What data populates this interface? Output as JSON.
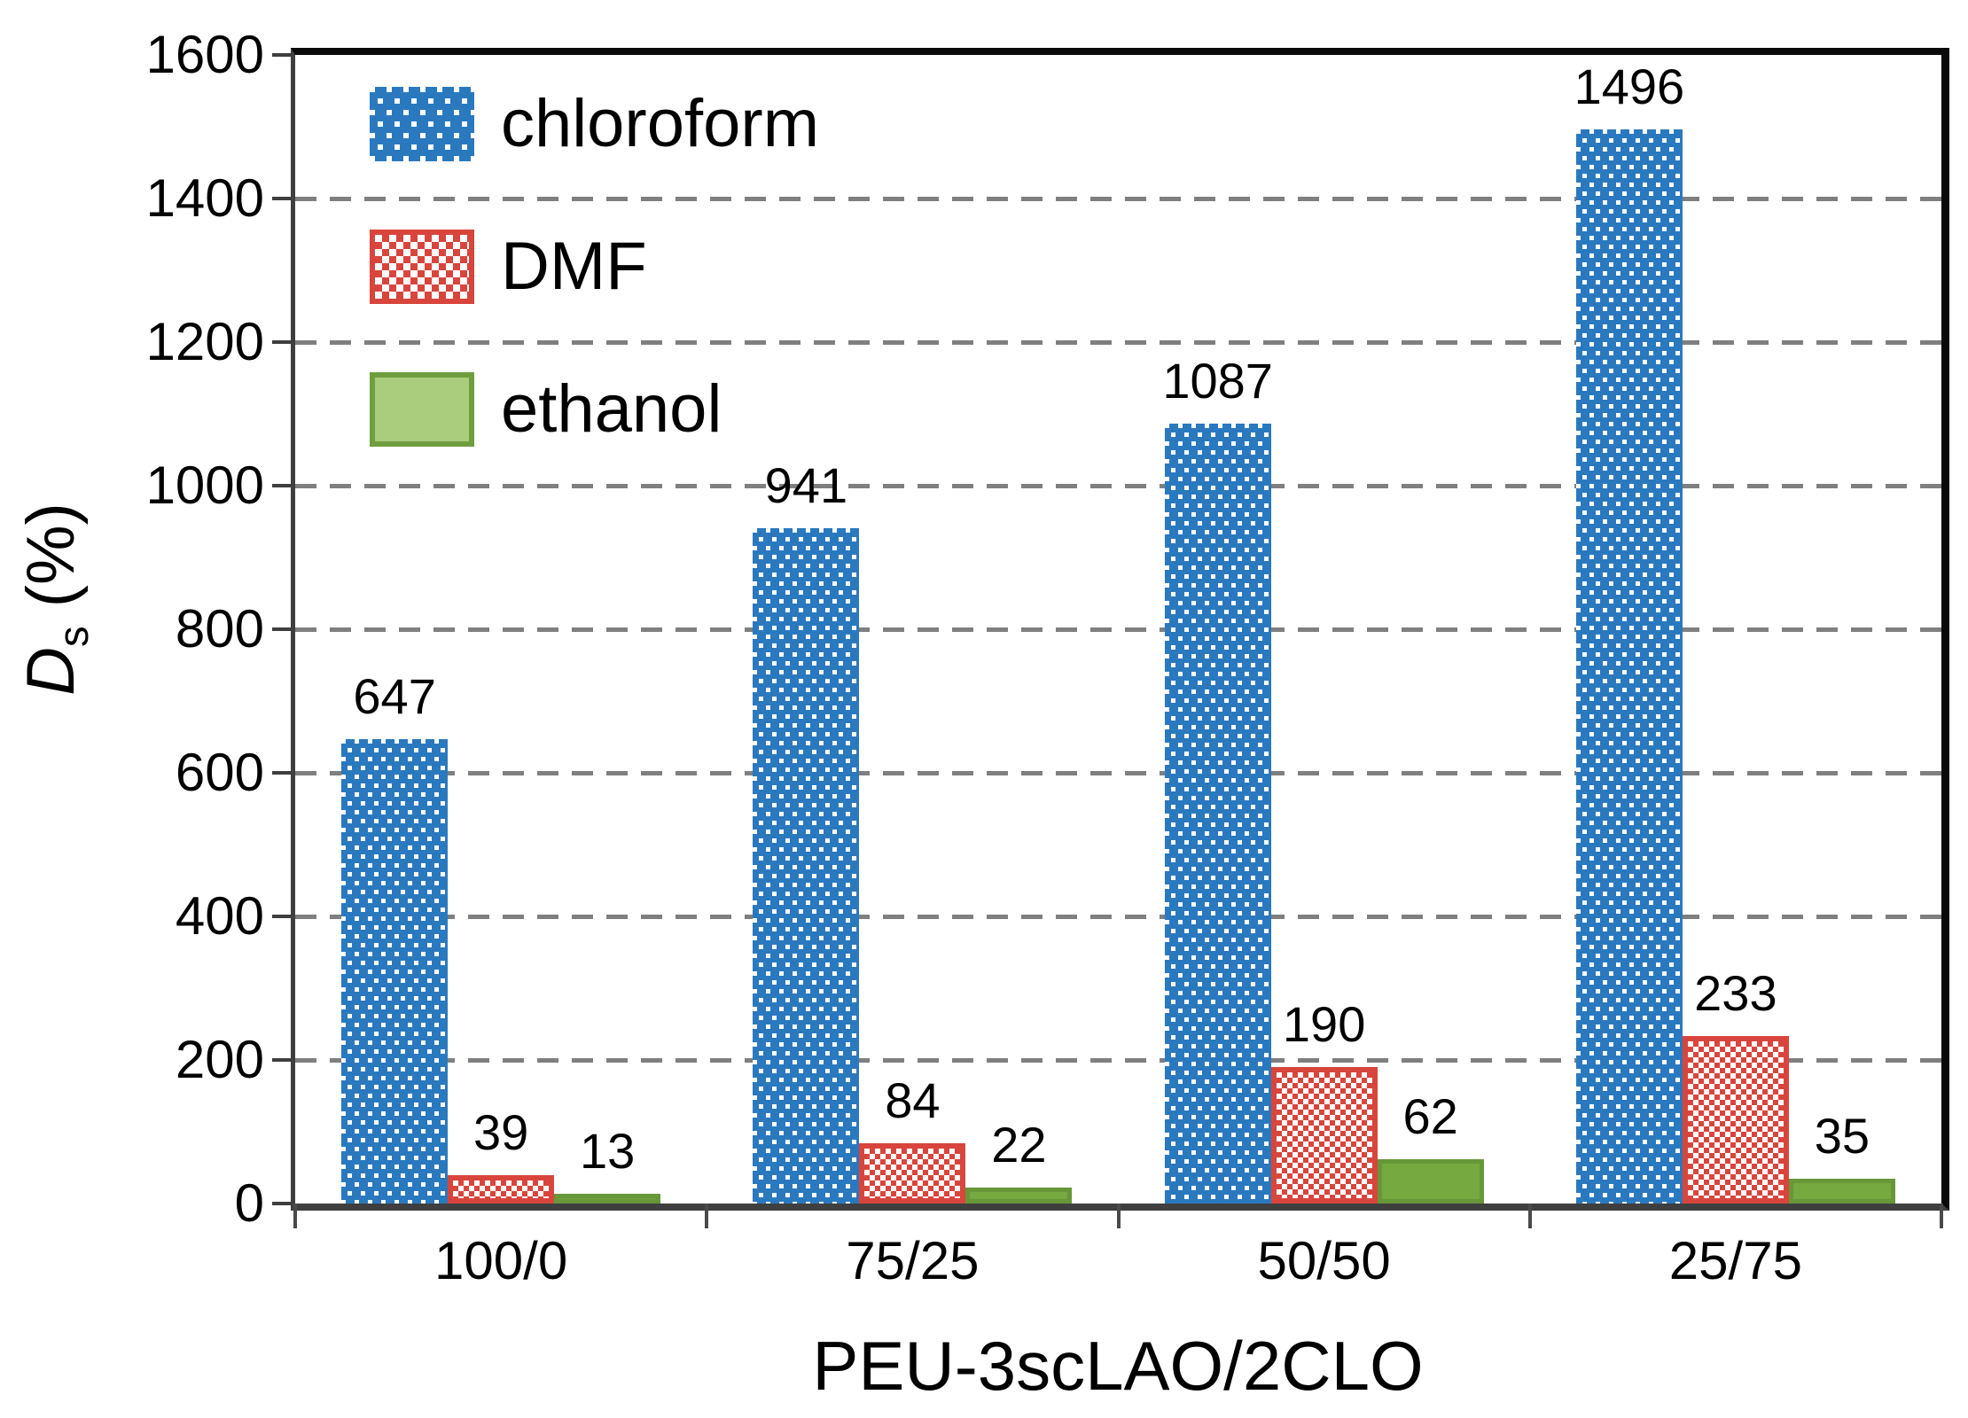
{
  "chart_data": {
    "type": "bar",
    "title": "",
    "categories": [
      "100/0",
      "75/25",
      "50/50",
      "25/75"
    ],
    "series": [
      {
        "name": "chloroform",
        "values": [
          647,
          941,
          1087,
          1496
        ],
        "pattern": "dots-on-blue",
        "color": "#2A79BF"
      },
      {
        "name": "DMF",
        "values": [
          39,
          84,
          190,
          233
        ],
        "pattern": "red-checkerboard",
        "color": "#D8453C"
      },
      {
        "name": "ethanol",
        "values": [
          13,
          22,
          62,
          35
        ],
        "pattern": "solid-green",
        "color": "#76A940"
      }
    ],
    "xlabel": "PEU-3scLAO/2CLO",
    "ylabel": {
      "symbol": "D",
      "subscript": "s",
      "unit": " (%)"
    },
    "ylim": [
      0,
      1600
    ],
    "ytick_interval": 200,
    "yticks": [
      "0",
      "200",
      "400",
      "600",
      "800",
      "1000",
      "1200",
      "1400",
      "1600"
    ],
    "grid": {
      "style": "dashed",
      "orientation": "horizontal",
      "color": "#7f7f7f"
    },
    "legend": {
      "position": "top-left-inside",
      "entries": [
        "chloroform",
        "DMF",
        "ethanol"
      ]
    },
    "colors": {
      "chloroform_fill": "#2A79BF",
      "dmf_fill": "#D8453C",
      "ethanol_fill": "#76A940",
      "ethanol_border": "#679738",
      "ethanol_legend_fill": "#A9CD7C",
      "frame_black": "#0a0a0a",
      "axis_gray": "#3f3f3f",
      "gridline_gray": "#7f7f7f"
    }
  }
}
